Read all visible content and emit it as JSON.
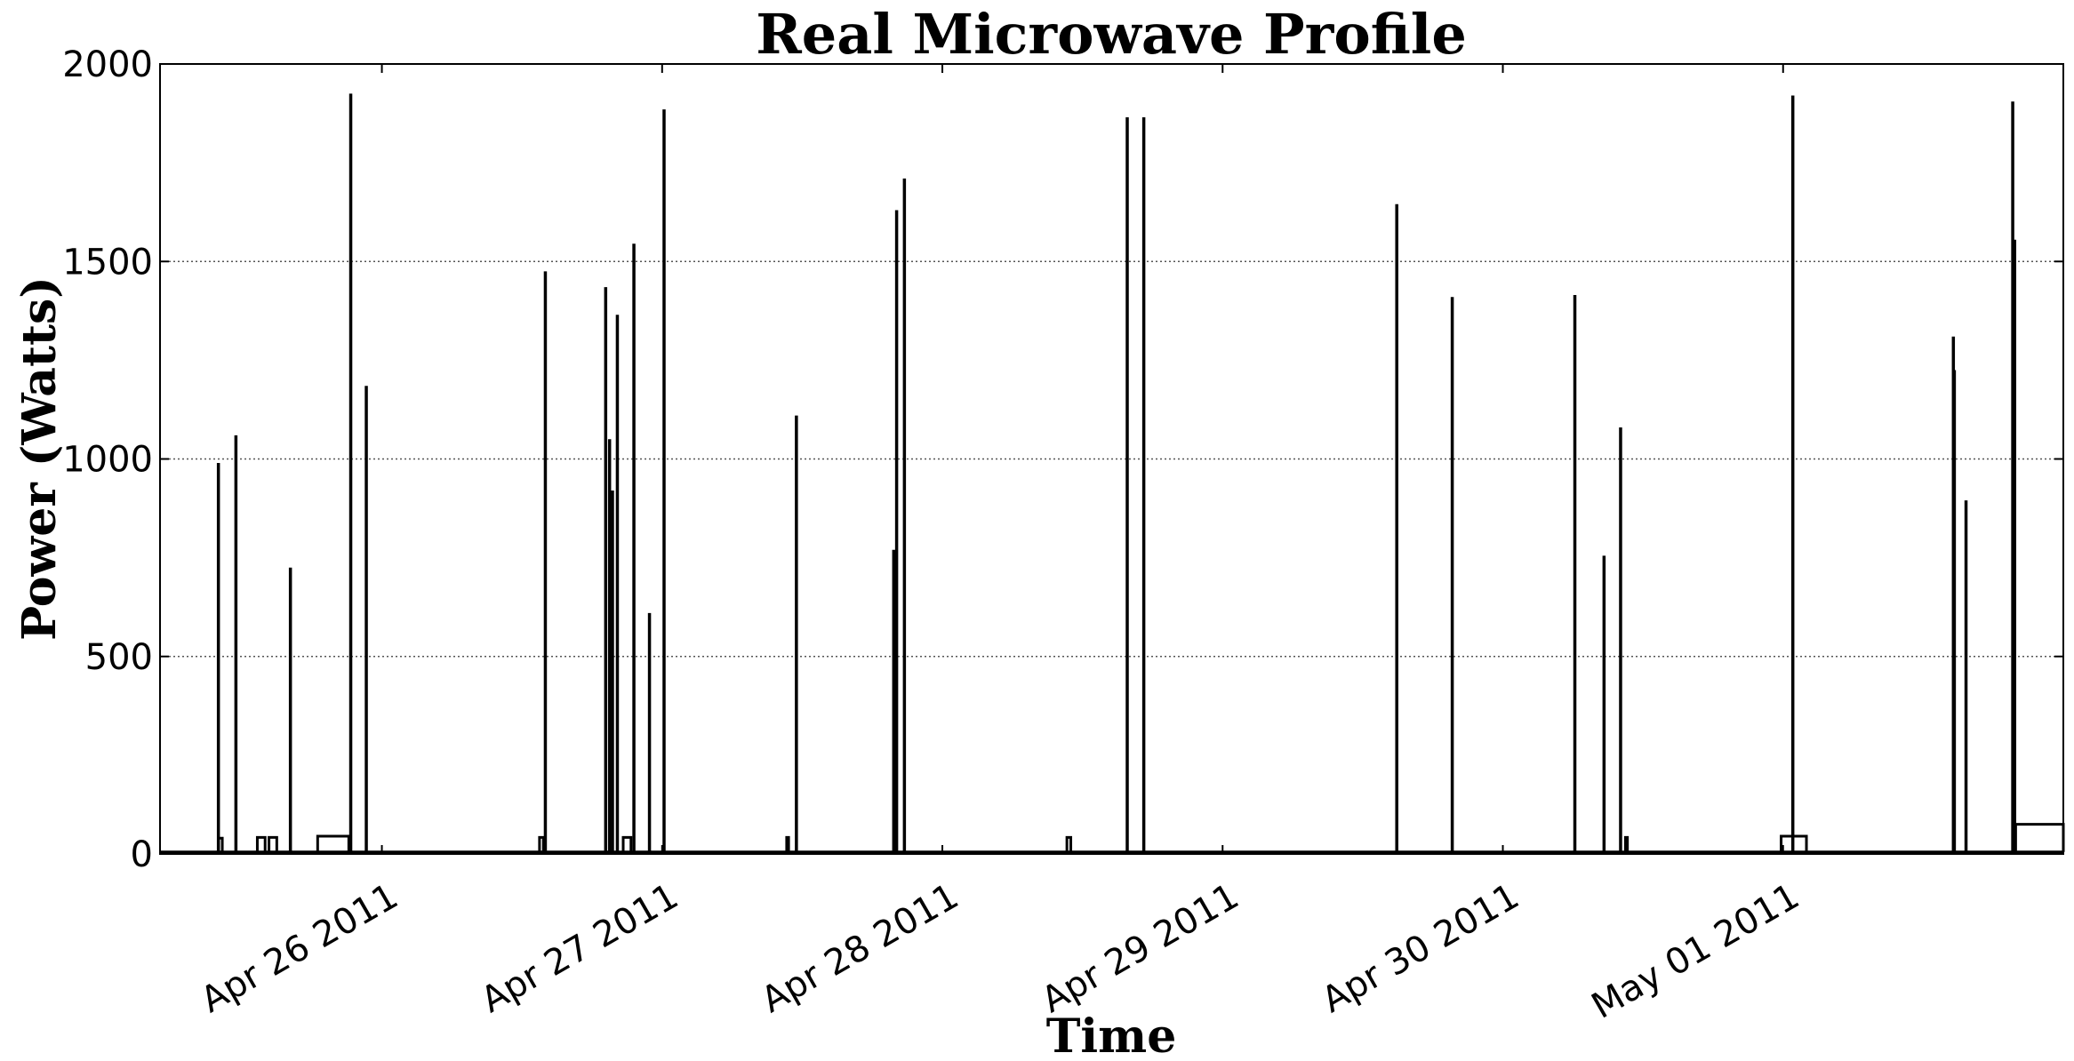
{
  "chart_data": {
    "type": "line",
    "title": "Real Microwave Profile",
    "xlabel": "Time",
    "ylabel": "Power (Watts)",
    "ylim": [
      0,
      2000
    ],
    "xlim": [
      "2011-04-25 05:00",
      "2011-05-02 00:00"
    ],
    "yticks": [
      0,
      500,
      1000,
      1500,
      2000
    ],
    "ytick_labels": [
      "0",
      "500",
      "1000",
      "1500",
      "2000"
    ],
    "xticks": [
      "2011-04-26 00:00",
      "2011-04-27 00:00",
      "2011-04-28 00:00",
      "2011-04-29 00:00",
      "2011-04-30 00:00",
      "2011-05-01 00:00"
    ],
    "xtick_labels": [
      "Apr 26 2011",
      "Apr 27 2011",
      "Apr 28 2011",
      "Apr 29 2011",
      "Apr 30 2011",
      "May 01 2011"
    ],
    "grid": "horizontal dotted",
    "line_color": "#000000",
    "spikes": [
      {
        "time": "2011-04-25 10:00",
        "value": 990
      },
      {
        "time": "2011-04-25 11:30",
        "value": 1060
      },
      {
        "time": "2011-04-25 16:10",
        "value": 725
      },
      {
        "time": "2011-04-25 21:20",
        "value": 1925
      },
      {
        "time": "2011-04-25 22:40",
        "value": 1185
      },
      {
        "time": "2011-04-26 14:00",
        "value": 1475
      },
      {
        "time": "2011-04-26 19:10",
        "value": 1435
      },
      {
        "time": "2011-04-26 19:30",
        "value": 1050
      },
      {
        "time": "2011-04-26 19:45",
        "value": 920
      },
      {
        "time": "2011-04-26 20:10",
        "value": 1365
      },
      {
        "time": "2011-04-26 21:35",
        "value": 1545
      },
      {
        "time": "2011-04-26 22:55",
        "value": 610
      },
      {
        "time": "2011-04-27 00:10",
        "value": 1885
      },
      {
        "time": "2011-04-27 11:30",
        "value": 1110
      },
      {
        "time": "2011-04-27 19:50",
        "value": 770
      },
      {
        "time": "2011-04-27 20:05",
        "value": 1630
      },
      {
        "time": "2011-04-27 20:45",
        "value": 1710
      },
      {
        "time": "2011-04-28 15:50",
        "value": 1865
      },
      {
        "time": "2011-04-28 17:15",
        "value": 1865
      },
      {
        "time": "2011-04-29 14:55",
        "value": 1645
      },
      {
        "time": "2011-04-29 19:40",
        "value": 1410
      },
      {
        "time": "2011-04-30 06:10",
        "value": 1415
      },
      {
        "time": "2011-04-30 08:40",
        "value": 755
      },
      {
        "time": "2011-04-30 10:05",
        "value": 1080
      },
      {
        "time": "2011-05-01 00:50",
        "value": 1920
      },
      {
        "time": "2011-05-01 14:35",
        "value": 1310
      },
      {
        "time": "2011-05-01 14:40",
        "value": 1225
      },
      {
        "time": "2011-05-01 15:40",
        "value": 895
      },
      {
        "time": "2011-05-01 19:40",
        "value": 1905
      },
      {
        "time": "2011-05-01 19:50",
        "value": 1555
      }
    ],
    "plateaus": [
      {
        "start": "2011-04-25 10:00",
        "end": "2011-04-25 10:20",
        "value": 40
      },
      {
        "start": "2011-04-25 13:20",
        "end": "2011-04-25 14:00",
        "value": 42
      },
      {
        "start": "2011-04-25 14:20",
        "end": "2011-04-25 15:00",
        "value": 42
      },
      {
        "start": "2011-04-25 18:30",
        "end": "2011-04-25 21:10",
        "value": 45
      },
      {
        "start": "2011-04-26 13:30",
        "end": "2011-04-26 13:50",
        "value": 42
      },
      {
        "start": "2011-04-26 20:40",
        "end": "2011-04-26 21:20",
        "value": 42
      },
      {
        "start": "2011-04-27 10:40",
        "end": "2011-04-27 10:50",
        "value": 42
      },
      {
        "start": "2011-04-28 10:40",
        "end": "2011-04-28 11:00",
        "value": 42
      },
      {
        "start": "2011-04-30 10:30",
        "end": "2011-04-30 10:40",
        "value": 42
      },
      {
        "start": "2011-04-30 23:50",
        "end": "2011-05-01 02:00",
        "value": 45
      },
      {
        "start": "2011-05-01 19:55",
        "end": "2011-05-02 00:00",
        "value": 75
      }
    ],
    "baseline": 5
  }
}
